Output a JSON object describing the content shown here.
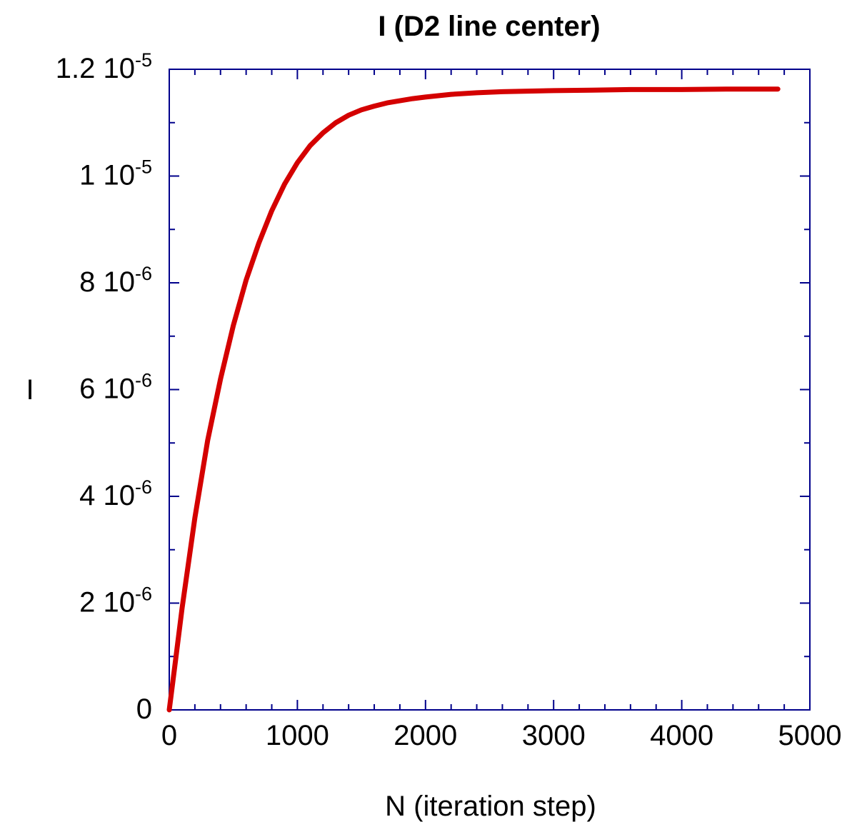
{
  "chart_data": {
    "type": "line",
    "title": "I (D2 line center)",
    "xlabel": "N (iteration step)",
    "ylabel": "I",
    "xlim": [
      0,
      5000
    ],
    "ylim": [
      0,
      1.2e-05
    ],
    "x_ticks": [
      {
        "value": 0,
        "label": "0"
      },
      {
        "value": 1000,
        "label": "1000"
      },
      {
        "value": 2000,
        "label": "2000"
      },
      {
        "value": 3000,
        "label": "3000"
      },
      {
        "value": 4000,
        "label": "4000"
      },
      {
        "value": 5000,
        "label": "5000"
      }
    ],
    "y_ticks": [
      {
        "value": 0,
        "mantissa": "0",
        "exponent": ""
      },
      {
        "value": 2e-06,
        "mantissa": "2 10",
        "exponent": "-6"
      },
      {
        "value": 4e-06,
        "mantissa": "4 10",
        "exponent": "-6"
      },
      {
        "value": 6e-06,
        "mantissa": "6 10",
        "exponent": "-6"
      },
      {
        "value": 8e-06,
        "mantissa": "8 10",
        "exponent": "-6"
      },
      {
        "value": 1e-05,
        "mantissa": "1 10",
        "exponent": "-5"
      },
      {
        "value": 1.2e-05,
        "mantissa": "1.2 10",
        "exponent": "-5"
      }
    ],
    "grid": false,
    "colors": {
      "line": "#d40000",
      "frame": "#00008b"
    },
    "series": [
      {
        "x": [
          0,
          50,
          100,
          200,
          300,
          400,
          500,
          600,
          700,
          800,
          900,
          1000,
          1100,
          1200,
          1300,
          1400,
          1500,
          1600,
          1700,
          1800,
          1900,
          2000,
          2200,
          2400,
          2600,
          2800,
          3000,
          3300,
          3600,
          4000,
          4400,
          4750
        ],
        "y": [
          0,
          9.5e-07,
          1.9e-06,
          3.6e-06,
          5.05e-06,
          6.2e-06,
          7.2e-06,
          8.05e-06,
          8.75e-06,
          9.35e-06,
          9.85e-06,
          1.025e-05,
          1.057e-05,
          1.081e-05,
          1.1e-05,
          1.114e-05,
          1.124e-05,
          1.131e-05,
          1.137e-05,
          1.141e-05,
          1.145e-05,
          1.148e-05,
          1.153e-05,
          1.156e-05,
          1.158e-05,
          1.159e-05,
          1.16e-05,
          1.161e-05,
          1.162e-05,
          1.162e-05,
          1.163e-05,
          1.163e-05
        ]
      }
    ]
  }
}
